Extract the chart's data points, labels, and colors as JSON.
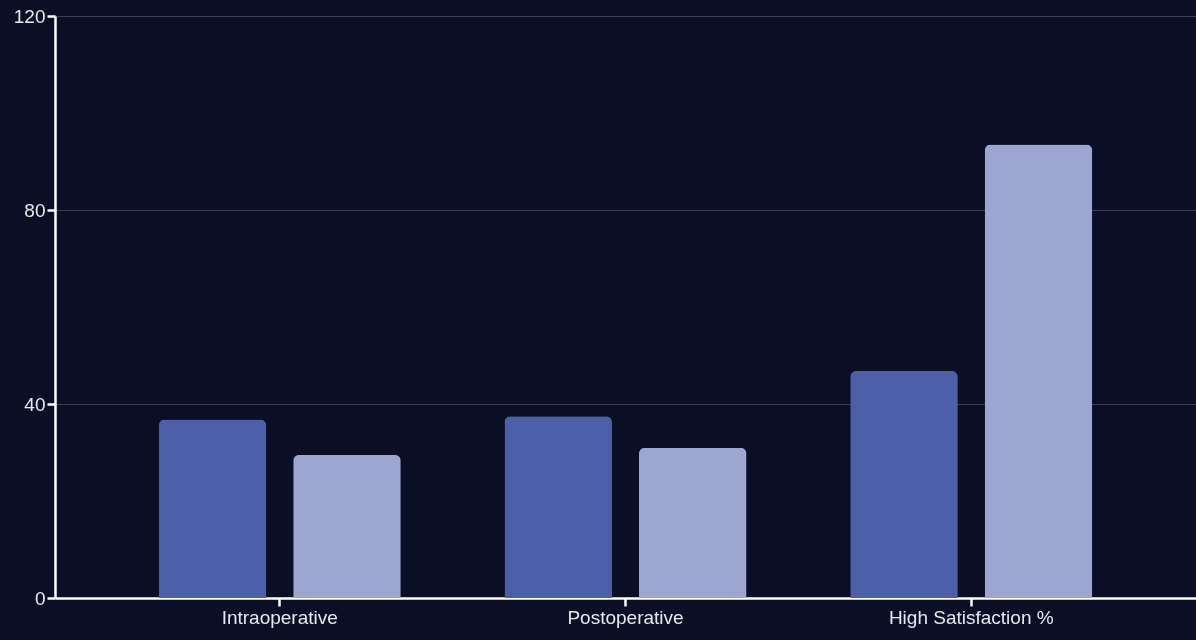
{
  "chart_data": {
    "type": "bar",
    "categories": [
      "Intraoperative",
      "Postoperative",
      "High Satisfaction %"
    ],
    "series": [
      {
        "color": "#4c5fa9",
        "values": [
          36.8,
          37.5,
          46.8
        ]
      },
      {
        "color": "#9ca6d1",
        "values": [
          29.5,
          31.0,
          93.5
        ]
      }
    ],
    "ylim": [
      0,
      120
    ],
    "yticks": [
      0,
      40,
      80,
      120
    ],
    "grid": "y"
  }
}
